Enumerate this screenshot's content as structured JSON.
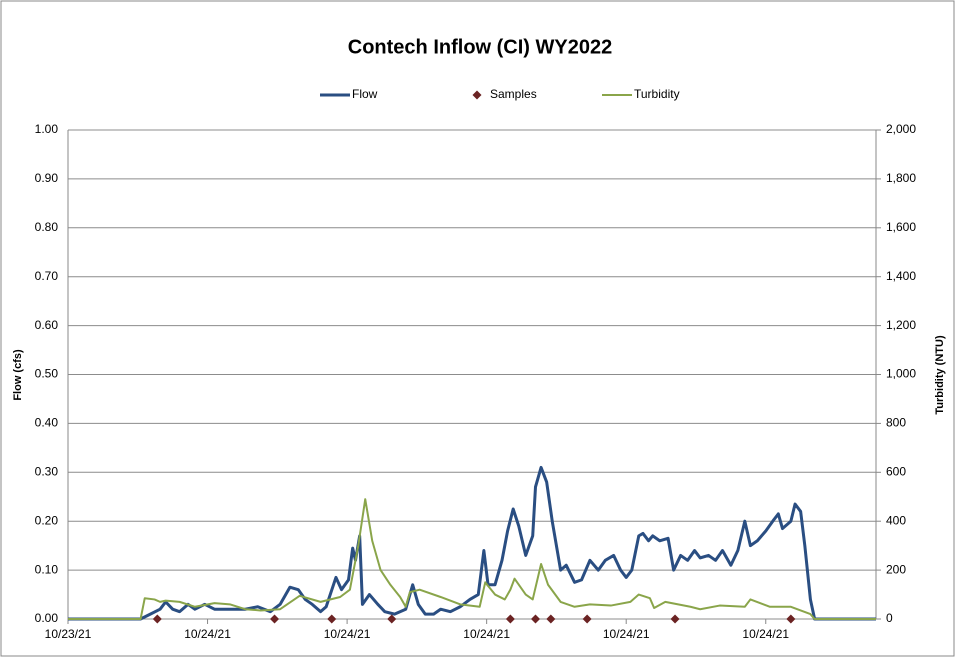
{
  "chart_data": {
    "type": "line",
    "title": "Contech Inflow (CI)  WY2022",
    "ylabel": "Flow (cfs)",
    "y2label": "Turbidity (NTU)",
    "xlim": [
      0,
      5.79
    ],
    "xticks": [
      {
        "value": 0,
        "label": "10/23/21"
      },
      {
        "value": 1,
        "label": "10/24/21"
      },
      {
        "value": 2,
        "label": "10/24/21"
      },
      {
        "value": 3,
        "label": "10/24/21"
      },
      {
        "value": 4,
        "label": "10/24/21"
      },
      {
        "value": 5,
        "label": "10/24/21"
      }
    ],
    "ylim": [
      0,
      1
    ],
    "yticks": [
      {
        "value": 0,
        "label": "0.00"
      },
      {
        "value": 0.1,
        "label": "0.10"
      },
      {
        "value": 0.2,
        "label": "0.20"
      },
      {
        "value": 0.3,
        "label": "0.30"
      },
      {
        "value": 0.4,
        "label": "0.40"
      },
      {
        "value": 0.5,
        "label": "0.50"
      },
      {
        "value": 0.6,
        "label": "0.60"
      },
      {
        "value": 0.7,
        "label": "0.70"
      },
      {
        "value": 0.8,
        "label": "0.80"
      },
      {
        "value": 0.9,
        "label": "0.90"
      },
      {
        "value": 1,
        "label": "1.00"
      }
    ],
    "y2lim": [
      0,
      2000
    ],
    "y2ticks": [
      0,
      200,
      400,
      600,
      800,
      {
        "value": 1000,
        "label": "1,000"
      },
      {
        "value": 1200,
        "label": "1,200"
      },
      {
        "value": 1400,
        "label": "1,400"
      },
      {
        "value": 1600,
        "label": "1,600"
      },
      {
        "value": 1800,
        "label": "1,800"
      },
      {
        "value": 2000,
        "label": "2,000"
      }
    ],
    "grid": true,
    "legend": "top",
    "series": [
      {
        "name": "Flow",
        "color": "#2a4e82",
        "style": "line",
        "x": [
          0,
          0.52,
          0.59,
          0.66,
          0.7,
          0.75,
          0.8,
          0.86,
          0.91,
          0.98,
          1.05,
          1.16,
          1.27,
          1.36,
          1.45,
          1.52,
          1.59,
          1.65,
          1.7,
          1.75,
          1.81,
          1.85,
          1.92,
          1.96,
          2.01,
          2.04,
          2.06,
          2.09,
          2.11,
          2.16,
          2.22,
          2.27,
          2.34,
          2.42,
          2.47,
          2.51,
          2.56,
          2.62,
          2.67,
          2.74,
          2.81,
          2.88,
          2.94,
          2.98,
          3.01,
          3.06,
          3.11,
          3.15,
          3.19,
          3.23,
          3.28,
          3.33,
          3.35,
          3.39,
          3.43,
          3.47,
          3.53,
          3.57,
          3.63,
          3.68,
          3.74,
          3.8,
          3.85,
          3.91,
          3.96,
          4.0,
          4.04,
          4.09,
          4.12,
          4.16,
          4.19,
          4.24,
          4.3,
          4.34,
          4.39,
          4.44,
          4.49,
          4.53,
          4.59,
          4.64,
          4.69,
          4.75,
          4.8,
          4.85,
          4.89,
          4.94,
          5.0,
          5.05,
          5.09,
          5.12,
          5.18,
          5.21,
          5.25,
          5.28,
          5.32,
          5.35,
          5.79
        ],
        "values": [
          0,
          0,
          0.01,
          0.02,
          0.035,
          0.02,
          0.015,
          0.03,
          0.02,
          0.03,
          0.02,
          0.02,
          0.02,
          0.025,
          0.015,
          0.03,
          0.065,
          0.06,
          0.04,
          0.03,
          0.015,
          0.025,
          0.085,
          0.06,
          0.08,
          0.145,
          0.12,
          0.17,
          0.03,
          0.05,
          0.03,
          0.015,
          0.01,
          0.02,
          0.07,
          0.03,
          0.01,
          0.01,
          0.02,
          0.015,
          0.025,
          0.04,
          0.05,
          0.14,
          0.07,
          0.07,
          0.12,
          0.18,
          0.225,
          0.19,
          0.13,
          0.17,
          0.27,
          0.31,
          0.28,
          0.2,
          0.1,
          0.11,
          0.075,
          0.08,
          0.12,
          0.1,
          0.12,
          0.13,
          0.1,
          0.085,
          0.1,
          0.17,
          0.175,
          0.16,
          0.17,
          0.16,
          0.165,
          0.1,
          0.13,
          0.12,
          0.14,
          0.125,
          0.13,
          0.12,
          0.14,
          0.11,
          0.14,
          0.2,
          0.15,
          0.16,
          0.18,
          0.2,
          0.215,
          0.185,
          0.2,
          0.235,
          0.22,
          0.15,
          0.04,
          0,
          0
        ]
      },
      {
        "name": "Samples",
        "color": "#6b2323",
        "style": "marker",
        "x": [
          0.64,
          1.48,
          1.89,
          2.32,
          3.17,
          3.35,
          3.46,
          3.72,
          4.35,
          5.18
        ],
        "values": [
          0,
          0,
          0,
          0,
          0,
          0,
          0,
          0,
          0,
          0
        ]
      },
      {
        "name": "Turbidity",
        "color": "#8aa54a",
        "style": "line",
        "axis": "y2",
        "x": [
          0,
          0.52,
          0.55,
          0.62,
          0.66,
          0.7,
          0.8,
          0.91,
          1.05,
          1.16,
          1.27,
          1.38,
          1.52,
          1.66,
          1.81,
          1.95,
          2.02,
          2.08,
          2.13,
          2.18,
          2.24,
          2.31,
          2.38,
          2.42,
          2.45,
          2.52,
          2.67,
          2.81,
          2.95,
          2.99,
          3.06,
          3.13,
          3.17,
          3.2,
          3.28,
          3.33,
          3.39,
          3.44,
          3.53,
          3.63,
          3.74,
          3.89,
          4.03,
          4.09,
          4.17,
          4.2,
          4.28,
          4.46,
          4.53,
          4.67,
          4.85,
          4.89,
          5.03,
          5.18,
          5.25,
          5.32,
          5.35,
          5.79
        ],
        "values": [
          0,
          0,
          85,
          80,
          70,
          75,
          70,
          50,
          65,
          60,
          40,
          35,
          40,
          95,
          70,
          90,
          120,
          300,
          490,
          320,
          200,
          140,
          90,
          50,
          110,
          120,
          90,
          60,
          50,
          150,
          100,
          80,
          120,
          165,
          100,
          80,
          225,
          140,
          70,
          50,
          60,
          55,
          70,
          100,
          85,
          45,
          70,
          50,
          40,
          55,
          50,
          80,
          50,
          50,
          35,
          20,
          0,
          0
        ]
      }
    ]
  }
}
